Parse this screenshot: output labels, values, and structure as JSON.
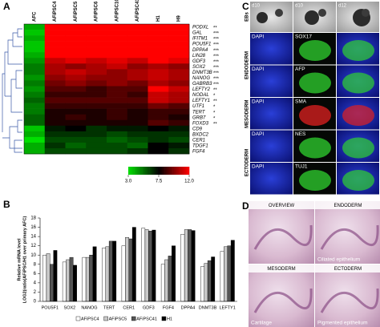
{
  "panel_a": {
    "label": "A",
    "columns": [
      "AFC",
      "AFiPSC4",
      "AFiPSC5",
      "AFiPSC6",
      "AFiPSC10",
      "AFiPSC41",
      "H1",
      "H9"
    ],
    "rows": [
      {
        "gene": "PODXL",
        "significance": "**",
        "values": [
          4,
          12,
          12,
          12,
          12,
          12,
          12,
          12
        ]
      },
      {
        "gene": "GAL",
        "significance": "***",
        "values": [
          3.5,
          12,
          12,
          12,
          12,
          12,
          12,
          12
        ]
      },
      {
        "gene": "IFITM1",
        "significance": "***",
        "values": [
          4,
          12,
          12,
          12,
          12,
          12,
          12,
          12
        ]
      },
      {
        "gene": "POU5F1",
        "significance": "***",
        "values": [
          3.5,
          12,
          12,
          12,
          12,
          12,
          12,
          12
        ]
      },
      {
        "gene": "DPPA4",
        "significance": "***",
        "values": [
          3.5,
          12,
          12,
          12,
          12,
          12,
          12,
          12
        ]
      },
      {
        "gene": "LIN28",
        "significance": "***",
        "values": [
          4,
          12,
          12,
          12,
          12,
          12,
          12,
          12
        ]
      },
      {
        "gene": "GDF3",
        "significance": "***",
        "values": [
          4.5,
          11,
          11.5,
          11,
          11.5,
          11,
          12,
          11.5
        ]
      },
      {
        "gene": "SOX2",
        "significance": "***",
        "values": [
          5,
          10.5,
          10,
          10.5,
          11,
          10,
          10.5,
          10
        ]
      },
      {
        "gene": "DNMT3B",
        "significance": "***",
        "values": [
          5,
          10.5,
          11,
          10.5,
          10,
          10.5,
          11,
          10.5
        ]
      },
      {
        "gene": "NANOG",
        "significance": "***",
        "values": [
          4.5,
          10,
          10.5,
          10,
          10,
          10.5,
          11,
          10.5
        ]
      },
      {
        "gene": "GABRB3",
        "significance": "***",
        "values": [
          5,
          9.5,
          10,
          9.5,
          10,
          9.5,
          10.5,
          10
        ]
      },
      {
        "gene": "LEFTY2",
        "significance": "**",
        "values": [
          4.5,
          9,
          9,
          8.5,
          9,
          9,
          12,
          11
        ]
      },
      {
        "gene": "NODAL",
        "significance": "*",
        "values": [
          5,
          8.5,
          8.5,
          8.5,
          9,
          8.5,
          11,
          10.5
        ]
      },
      {
        "gene": "LEFTY1",
        "significance": "**",
        "values": [
          5.5,
          9,
          9,
          9,
          9,
          9,
          11,
          10.5
        ]
      },
      {
        "gene": "UTF1",
        "significance": "*",
        "values": [
          5,
          8.5,
          8.5,
          8.5,
          8.5,
          8.5,
          9.5,
          9
        ]
      },
      {
        "gene": "TERT",
        "significance": "*",
        "values": [
          5,
          8,
          8,
          8,
          8.5,
          8,
          8.5,
          8.5
        ]
      },
      {
        "gene": "GRB7",
        "significance": "*",
        "values": [
          5.5,
          8,
          8.5,
          8,
          8.5,
          8,
          8.5,
          8
        ]
      },
      {
        "gene": "FOXD3",
        "significance": "**",
        "values": [
          5.5,
          8,
          8,
          8,
          8,
          8,
          9,
          8.5
        ]
      },
      {
        "gene": "CD9",
        "values": [
          3.5,
          7,
          7.5,
          6.5,
          7,
          7,
          7.5,
          7
        ]
      },
      {
        "gene": "BXDC2",
        "values": [
          4,
          6.5,
          6.5,
          6.5,
          6,
          6.5,
          6.5,
          6.5
        ]
      },
      {
        "gene": "CER1",
        "values": [
          3,
          6,
          6,
          6,
          5.5,
          6,
          6.5,
          6
        ]
      },
      {
        "gene": "TDGF1",
        "values": [
          4,
          6.5,
          5.5,
          6,
          6,
          5.5,
          7.5,
          7
        ]
      },
      {
        "gene": "FGF4",
        "values": [
          4,
          6,
          6,
          6,
          6,
          6.5,
          7.5,
          6.5
        ]
      }
    ],
    "color_key_ticks": [
      {
        "value": 3,
        "label": "3.0"
      },
      {
        "value": 7.5,
        "label": "7.5"
      },
      {
        "value": 12,
        "label": "12.0"
      }
    ],
    "low_color": "#00e000",
    "mid_color": "#000000",
    "high_color": "#ff0000"
  },
  "panel_b": {
    "label": "B",
    "type": "bar",
    "y_label_lines": [
      "Relative mRNA level",
      "LOG2(ratio(AFiPSC/H1 over primary AFC)"
    ],
    "categories": [
      "POU5F1",
      "SOX2",
      "NANOG",
      "TERT",
      "CER1",
      "GDF3",
      "FGF4",
      "DPPA4",
      "DNMT3B",
      "LEFTY1"
    ],
    "series": [
      {
        "name": "AFiPSC4",
        "color": "#ffffff",
        "values": [
          10,
          8.5,
          9.5,
          11.5,
          12,
          15.8,
          8,
          14.5,
          7.5,
          10.8
        ]
      },
      {
        "name": "AFiPSC5",
        "color": "#c8c8c8",
        "values": [
          10.3,
          9,
          9.5,
          11.8,
          13.8,
          15.5,
          9,
          15.5,
          8.2,
          11.8
        ]
      },
      {
        "name": "AFiPSC41",
        "color": "#555555",
        "values": [
          8,
          9.5,
          10,
          13,
          13.5,
          15.2,
          9.8,
          15.5,
          8.8,
          12
        ]
      },
      {
        "name": "H1",
        "color": "#000000",
        "values": [
          11,
          7.8,
          11.8,
          13,
          16,
          15.4,
          12,
          15.3,
          9.6,
          13.2
        ]
      }
    ],
    "ylim": [
      0,
      18
    ],
    "yticks": [
      0,
      2,
      4,
      6,
      8,
      10,
      12,
      14,
      16,
      18
    ],
    "legend": "bottom"
  },
  "panel_c": {
    "label": "C",
    "eb_label": "EBs",
    "eb_days": [
      "d10",
      "d10",
      "d12"
    ],
    "counterstain": "DAPI",
    "groups": [
      {
        "name": "ENDODERM",
        "markers": [
          {
            "name": "SOX17",
            "color": "#2fd12f"
          },
          {
            "name": "AFP",
            "color": "#2fd12f"
          }
        ]
      },
      {
        "name": "MESODERM",
        "markers": [
          {
            "name": "SMA",
            "color": "#e02020"
          }
        ]
      },
      {
        "name": "ECTODERM",
        "markers": [
          {
            "name": "NES",
            "color": "#2fd12f"
          },
          {
            "name": "TUJ1",
            "color": "#2fd12f"
          }
        ]
      }
    ]
  },
  "panel_d": {
    "label": "D",
    "images": [
      {
        "title": "OVERVIEW"
      },
      {
        "title": "ENDODERM",
        "caption": "Ciliated epithelium"
      },
      {
        "title": "MESODERM",
        "caption": "Cartilage"
      },
      {
        "title": "ECTODERM",
        "caption": "Pigmented epithelium"
      }
    ]
  }
}
